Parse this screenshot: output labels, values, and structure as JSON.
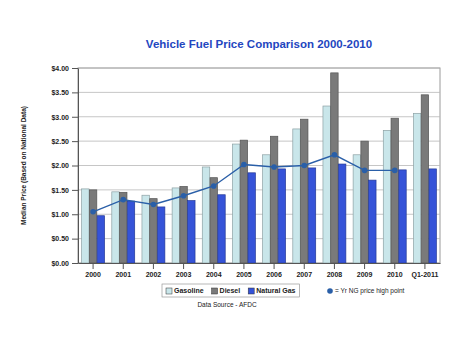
{
  "chart_data": {
    "type": "bar",
    "title": "Vehicle Fuel Price Comparison 2000-2010",
    "y_label": "Median Price (Based on National Data)",
    "annotations": [
      "Data Source - AFDC"
    ],
    "categories": [
      "2000",
      "2001",
      "2002",
      "2003",
      "2004",
      "2005",
      "2006",
      "2007",
      "2008",
      "2009",
      "2010",
      "Q1-2011"
    ],
    "series": [
      {
        "name": "Gasoline",
        "color": "#c9e6ea",
        "type": "bar",
        "values": [
          1.52,
          1.46,
          1.39,
          1.54,
          1.97,
          2.44,
          2.22,
          2.75,
          3.22,
          2.22,
          2.72,
          3.07
        ]
      },
      {
        "name": "Diesel",
        "color": "#7a7a7a",
        "type": "bar",
        "values": [
          1.5,
          1.45,
          1.32,
          1.57,
          1.75,
          2.52,
          2.6,
          2.95,
          3.9,
          2.5,
          2.97,
          3.45
        ]
      },
      {
        "name": "Natural Gas",
        "color": "#3553d8",
        "type": "bar",
        "values": [
          0.97,
          1.27,
          1.15,
          1.28,
          1.4,
          1.85,
          1.93,
          1.95,
          2.03,
          1.7,
          1.91,
          1.93
        ]
      },
      {
        "name": "= Yr NG price high point",
        "color": "#2a5fa8",
        "type": "line",
        "marker": "circle",
        "values": [
          1.05,
          1.3,
          1.2,
          1.38,
          1.58,
          2.02,
          1.97,
          2.0,
          2.22,
          1.9,
          1.9,
          null
        ]
      }
    ],
    "ylim": [
      0,
      4
    ],
    "yticks": [
      {
        "value": 0,
        "label": "$0.00"
      },
      {
        "value": 0.5,
        "label": "$0.50"
      },
      {
        "value": 1,
        "label": "$1.00"
      },
      {
        "value": 1.5,
        "label": "$1.50"
      },
      {
        "value": 2,
        "label": "$2.00"
      },
      {
        "value": 2.5,
        "label": "$2.50"
      },
      {
        "value": 3,
        "label": "$3.00"
      },
      {
        "value": 3.5,
        "label": "$3.50"
      },
      {
        "value": 4,
        "label": "$4.00"
      }
    ],
    "grid": true,
    "legend": "bottom"
  }
}
